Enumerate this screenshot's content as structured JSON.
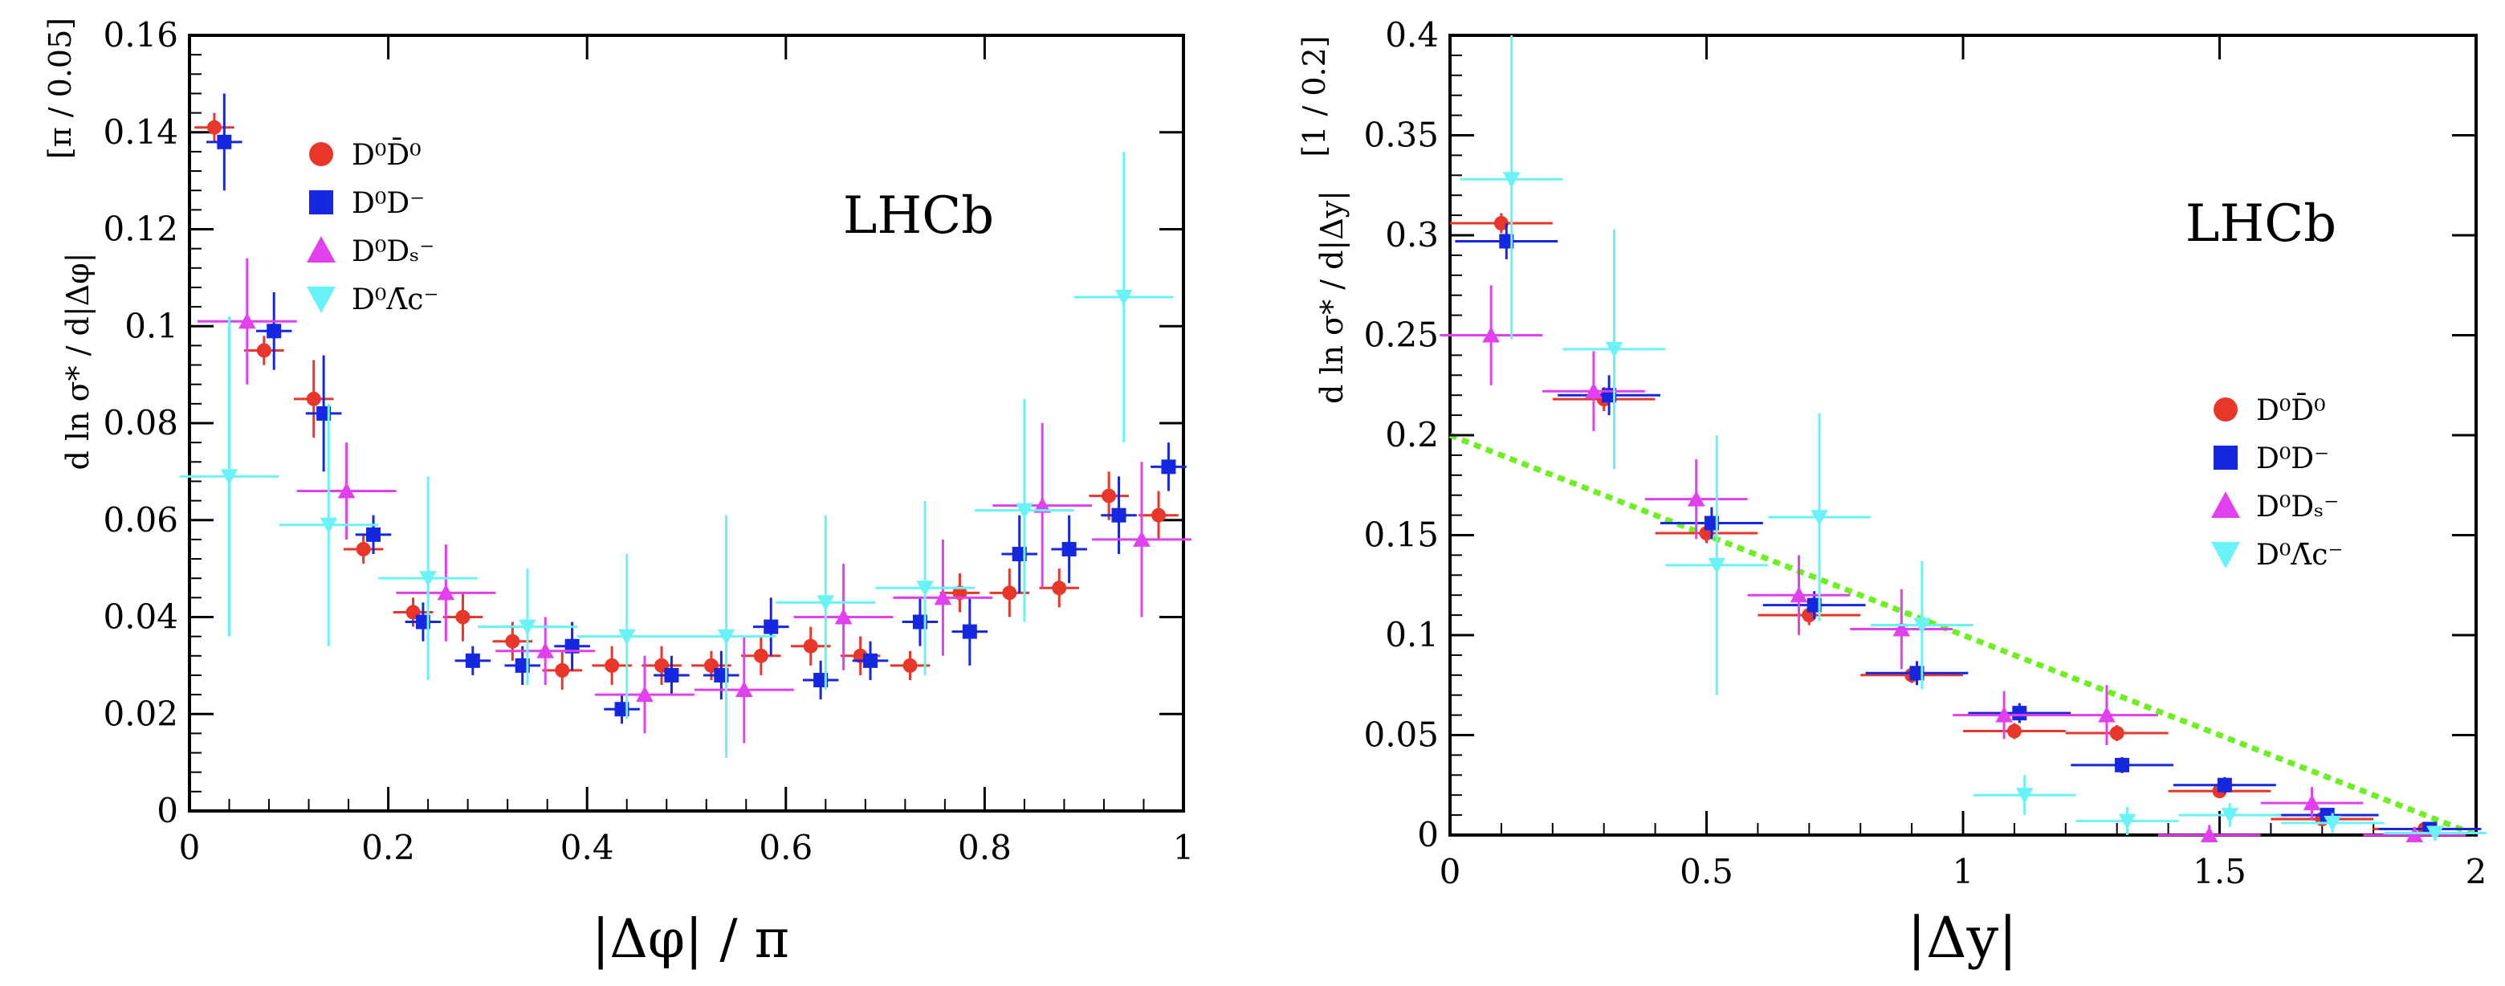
{
  "colors": {
    "DD": "#e8362a",
    "Dm": "#1528e0",
    "Ds": "#e040ee",
    "Lc": "#69f3f7",
    "guide": "#6cf020",
    "axis": "#000000"
  },
  "chart_data": [
    {
      "type": "scatter",
      "title": "LHCb",
      "xlabel": "|Δφ| / π",
      "ylabel": "d ln σ* / d|Δφ|",
      "yunit": "[π / 0.05]",
      "xlim": [
        0,
        1
      ],
      "ylim": [
        0,
        0.16
      ],
      "xticks": [
        "0",
        "0.2",
        "0.4",
        "0.6",
        "0.8",
        "1"
      ],
      "yticks": [
        "0",
        "0.02",
        "0.04",
        "0.06",
        "0.08",
        "0.1",
        "0.12",
        "0.14",
        "0.16"
      ],
      "legend_position": "top-left",
      "series": [
        {
          "name": "D0D0bar",
          "label": "D⁰D̄⁰",
          "marker": "circle",
          "color_key": "DD",
          "points": [
            [
              0.025,
              0.141,
              0.02,
              0.003
            ],
            [
              0.075,
              0.095,
              0.02,
              0.003
            ],
            [
              0.125,
              0.085,
              0.02,
              0.008
            ],
            [
              0.175,
              0.054,
              0.02,
              0.003
            ],
            [
              0.225,
              0.041,
              0.02,
              0.003
            ],
            [
              0.275,
              0.04,
              0.02,
              0.005
            ],
            [
              0.325,
              0.035,
              0.02,
              0.004
            ],
            [
              0.375,
              0.029,
              0.02,
              0.004
            ],
            [
              0.425,
              0.03,
              0.02,
              0.004
            ],
            [
              0.475,
              0.03,
              0.02,
              0.004
            ],
            [
              0.525,
              0.03,
              0.02,
              0.003
            ],
            [
              0.575,
              0.032,
              0.02,
              0.004
            ],
            [
              0.625,
              0.034,
              0.02,
              0.004
            ],
            [
              0.675,
              0.032,
              0.02,
              0.004
            ],
            [
              0.725,
              0.03,
              0.02,
              0.003
            ],
            [
              0.775,
              0.045,
              0.02,
              0.004
            ],
            [
              0.825,
              0.045,
              0.02,
              0.005
            ],
            [
              0.875,
              0.046,
              0.02,
              0.004
            ],
            [
              0.925,
              0.065,
              0.02,
              0.005
            ],
            [
              0.975,
              0.061,
              0.02,
              0.005
            ]
          ]
        },
        {
          "name": "D0Dminus",
          "label": "D⁰D⁻",
          "marker": "square",
          "color_key": "Dm",
          "points": [
            [
              0.035,
              0.138,
              0.018,
              0.01
            ],
            [
              0.085,
              0.099,
              0.018,
              0.008
            ],
            [
              0.135,
              0.082,
              0.018,
              0.012
            ],
            [
              0.185,
              0.057,
              0.018,
              0.004
            ],
            [
              0.235,
              0.039,
              0.018,
              0.004
            ],
            [
              0.285,
              0.031,
              0.018,
              0.003
            ],
            [
              0.335,
              0.03,
              0.018,
              0.004
            ],
            [
              0.385,
              0.034,
              0.018,
              0.005
            ],
            [
              0.435,
              0.021,
              0.018,
              0.003
            ],
            [
              0.485,
              0.028,
              0.018,
              0.004
            ],
            [
              0.535,
              0.028,
              0.018,
              0.005
            ],
            [
              0.585,
              0.038,
              0.018,
              0.006
            ],
            [
              0.635,
              0.027,
              0.018,
              0.004
            ],
            [
              0.685,
              0.031,
              0.018,
              0.004
            ],
            [
              0.735,
              0.039,
              0.018,
              0.005
            ],
            [
              0.785,
              0.037,
              0.018,
              0.007
            ],
            [
              0.835,
              0.053,
              0.018,
              0.008
            ],
            [
              0.885,
              0.054,
              0.018,
              0.007
            ],
            [
              0.935,
              0.061,
              0.018,
              0.008
            ],
            [
              0.985,
              0.071,
              0.018,
              0.005
            ]
          ]
        },
        {
          "name": "D0Ds",
          "label": "D⁰Dₛ⁻",
          "marker": "triangle-up",
          "color_key": "Ds",
          "points": [
            [
              0.058,
              0.101,
              0.05,
              0.013
            ],
            [
              0.158,
              0.066,
              0.05,
              0.01
            ],
            [
              0.258,
              0.045,
              0.05,
              0.01
            ],
            [
              0.358,
              0.033,
              0.05,
              0.007
            ],
            [
              0.458,
              0.024,
              0.05,
              0.008
            ],
            [
              0.558,
              0.025,
              0.05,
              0.011
            ],
            [
              0.658,
              0.04,
              0.05,
              0.011
            ],
            [
              0.758,
              0.044,
              0.05,
              0.012
            ],
            [
              0.858,
              0.063,
              0.05,
              0.017
            ],
            [
              0.958,
              0.056,
              0.05,
              0.016
            ]
          ]
        },
        {
          "name": "D0Lc",
          "label": "D⁰Λ̄c⁻",
          "marker": "triangle-down",
          "color_key": "Lc",
          "points": [
            [
              0.04,
              0.069,
              0.05,
              0.033
            ],
            [
              0.14,
              0.059,
              0.05,
              0.025
            ],
            [
              0.24,
              0.048,
              0.05,
              0.021
            ],
            [
              0.34,
              0.038,
              0.05,
              0.012
            ],
            [
              0.44,
              0.036,
              0.05,
              0.017
            ],
            [
              0.54,
              0.036,
              0.05,
              0.025
            ],
            [
              0.64,
              0.043,
              0.05,
              0.018
            ],
            [
              0.74,
              0.046,
              0.05,
              0.018
            ],
            [
              0.84,
              0.062,
              0.05,
              0.023
            ],
            [
              0.94,
              0.106,
              0.05,
              0.03
            ]
          ]
        }
      ]
    },
    {
      "type": "scatter",
      "title": "LHCb",
      "xlabel": "|Δy|",
      "ylabel": "d ln σ* / d|Δy|",
      "yunit": "[1 / 0.2]",
      "xlim": [
        0,
        2
      ],
      "ylim": [
        0,
        0.4
      ],
      "xticks": [
        "0",
        "0.5",
        "1",
        "1.5",
        "2"
      ],
      "yticks": [
        "0",
        "0.05",
        "0.1",
        "0.15",
        "0.2",
        "0.25",
        "0.3",
        "0.35",
        "0.4"
      ],
      "legend_position": "center-right",
      "guide_line": {
        "x": [
          0,
          2
        ],
        "y": [
          0.2,
          0
        ]
      },
      "series": [
        {
          "name": "D0D0bar",
          "label": "D⁰D̄⁰",
          "marker": "circle",
          "color_key": "DD",
          "points": [
            [
              0.1,
              0.306,
              0.1,
              0.005
            ],
            [
              0.3,
              0.218,
              0.1,
              0.006
            ],
            [
              0.5,
              0.151,
              0.1,
              0.005
            ],
            [
              0.7,
              0.11,
              0.1,
              0.005
            ],
            [
              0.9,
              0.08,
              0.1,
              0.004
            ],
            [
              1.1,
              0.052,
              0.1,
              0.004
            ],
            [
              1.3,
              0.051,
              0.1,
              0.004
            ],
            [
              1.5,
              0.022,
              0.1,
              0.003
            ],
            [
              1.7,
              0.008,
              0.1,
              0.002
            ],
            [
              1.9,
              0.003,
              0.1,
              0.002
            ]
          ]
        },
        {
          "name": "D0Dminus",
          "label": "D⁰D⁻",
          "marker": "square",
          "color_key": "Dm",
          "points": [
            [
              0.11,
              0.297,
              0.1,
              0.009
            ],
            [
              0.31,
              0.22,
              0.1,
              0.01
            ],
            [
              0.51,
              0.156,
              0.1,
              0.008
            ],
            [
              0.71,
              0.115,
              0.1,
              0.007
            ],
            [
              0.91,
              0.081,
              0.1,
              0.006
            ],
            [
              1.11,
              0.061,
              0.1,
              0.005
            ],
            [
              1.31,
              0.035,
              0.1,
              0.004
            ],
            [
              1.51,
              0.025,
              0.1,
              0.004
            ],
            [
              1.71,
              0.01,
              0.1,
              0.003
            ],
            [
              1.91,
              0.003,
              0.1,
              0.002
            ]
          ]
        },
        {
          "name": "D0Ds",
          "label": "D⁰Dₛ⁻",
          "marker": "triangle-up",
          "color_key": "Ds",
          "points": [
            [
              0.08,
              0.25,
              0.1,
              0.025
            ],
            [
              0.28,
              0.222,
              0.1,
              0.02
            ],
            [
              0.48,
              0.168,
              0.1,
              0.02
            ],
            [
              0.68,
              0.12,
              0.1,
              0.02
            ],
            [
              0.88,
              0.103,
              0.1,
              0.02
            ],
            [
              1.08,
              0.06,
              0.1,
              0.012
            ],
            [
              1.28,
              0.06,
              0.1,
              0.015
            ],
            [
              1.48,
              0.0,
              0.1,
              0.005
            ],
            [
              1.68,
              0.016,
              0.1,
              0.008
            ],
            [
              1.88,
              0.0,
              0.1,
              0.004
            ]
          ]
        },
        {
          "name": "D0Lc",
          "label": "D⁰Λ̄c⁻",
          "marker": "triangle-down",
          "color_key": "Lc",
          "points": [
            [
              0.12,
              0.328,
              0.1,
              0.08
            ],
            [
              0.32,
              0.243,
              0.1,
              0.06
            ],
            [
              0.52,
              0.135,
              0.1,
              0.065
            ],
            [
              0.72,
              0.159,
              0.1,
              0.052
            ],
            [
              0.92,
              0.105,
              0.1,
              0.032
            ],
            [
              1.12,
              0.02,
              0.1,
              0.01
            ],
            [
              1.32,
              0.007,
              0.1,
              0.007
            ],
            [
              1.52,
              0.01,
              0.1,
              0.006
            ],
            [
              1.72,
              0.006,
              0.1,
              0.005
            ],
            [
              1.92,
              0.001,
              0.1,
              0.003
            ]
          ]
        }
      ]
    }
  ]
}
